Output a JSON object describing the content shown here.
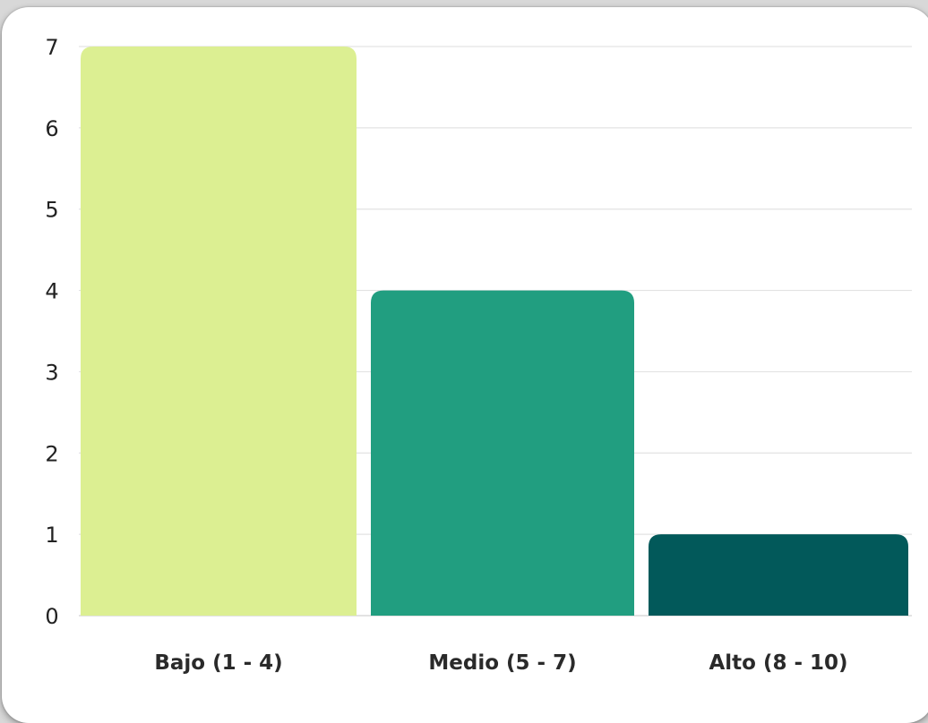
{
  "chart_data": {
    "type": "bar",
    "categories": [
      "Bajo (1 - 4)",
      "Medio (5 - 7)",
      "Alto (8 - 10)"
    ],
    "values": [
      7,
      4,
      1
    ],
    "ylim": [
      0,
      7
    ],
    "yticks": [
      "0",
      "1",
      "2",
      "3",
      "4",
      "5",
      "6",
      "7"
    ],
    "grid": true,
    "colors": [
      "#dcef92",
      "#219e80",
      "#02595a"
    ],
    "title": "",
    "xlabel": "",
    "ylabel": ""
  }
}
